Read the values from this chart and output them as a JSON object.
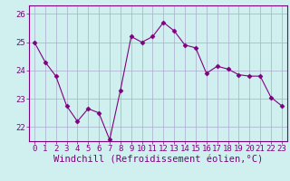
{
  "xlabel": "Windchill (Refroidissement éolien,°C)",
  "x": [
    0,
    1,
    2,
    3,
    4,
    5,
    6,
    7,
    8,
    9,
    10,
    11,
    12,
    13,
    14,
    15,
    16,
    17,
    18,
    19,
    20,
    21,
    22,
    23
  ],
  "y": [
    25.0,
    24.3,
    23.8,
    22.75,
    22.2,
    22.65,
    22.5,
    21.55,
    23.3,
    25.2,
    25.0,
    25.2,
    25.7,
    25.4,
    24.9,
    24.8,
    23.9,
    24.15,
    24.05,
    23.85,
    23.8,
    23.8,
    23.05,
    22.75
  ],
  "line_color": "#7f007f",
  "marker": "D",
  "marker_size": 2.5,
  "bg_color": "#d0f0f0",
  "grid_color": "#aaaacc",
  "ylim": [
    21.5,
    26.3
  ],
  "yticks": [
    22,
    23,
    24,
    25,
    26
  ],
  "xlim": [
    -0.5,
    23.5
  ],
  "xticks": [
    0,
    1,
    2,
    3,
    4,
    5,
    6,
    7,
    8,
    9,
    10,
    11,
    12,
    13,
    14,
    15,
    16,
    17,
    18,
    19,
    20,
    21,
    22,
    23
  ],
  "tick_fontsize": 6.5,
  "xlabel_fontsize": 7.5,
  "label_color": "#7f007f",
  "spine_color": "#7f007f"
}
